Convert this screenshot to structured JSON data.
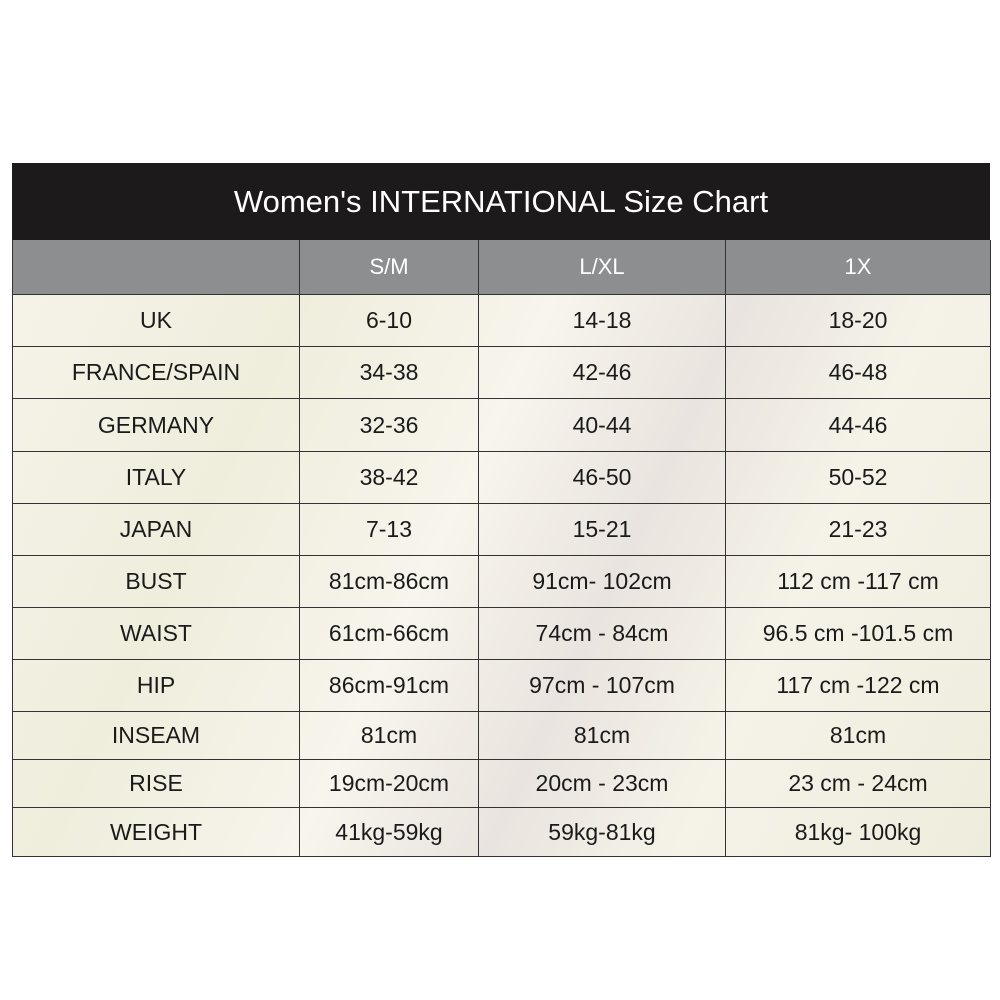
{
  "title": "Women's INTERNATIONAL Size Chart",
  "columns": [
    "",
    "S/M",
    "L/XL",
    "1X"
  ],
  "rows": [
    {
      "label": "UK",
      "values": [
        "6-10",
        "14-18",
        "18-20"
      ]
    },
    {
      "label": "FRANCE/SPAIN",
      "values": [
        "34-38",
        "42-46",
        "46-48"
      ]
    },
    {
      "label": "GERMANY",
      "values": [
        "32-36",
        "40-44",
        "44-46"
      ]
    },
    {
      "label": "ITALY",
      "values": [
        "38-42",
        "46-50",
        "50-52"
      ]
    },
    {
      "label": "JAPAN",
      "values": [
        "7-13",
        "15-21",
        "21-23"
      ]
    },
    {
      "label": "BUST",
      "values": [
        "81cm-86cm",
        "91cm- 102cm",
        "112 cm -117 cm"
      ]
    },
    {
      "label": "WAIST",
      "values": [
        "61cm-66cm",
        "74cm - 84cm",
        "96.5 cm -101.5 cm"
      ]
    },
    {
      "label": "HIP",
      "values": [
        "86cm-91cm",
        "97cm - 107cm",
        "117 cm -122 cm"
      ]
    },
    {
      "label": "INSEAM",
      "values": [
        "81cm",
        "81cm",
        "81cm"
      ]
    },
    {
      "label": "RISE",
      "values": [
        "19cm-20cm",
        "20cm - 23cm",
        "23 cm - 24cm"
      ]
    },
    {
      "label": "WEIGHT",
      "values": [
        "41kg-59kg",
        "59kg-81kg",
        "81kg- 100kg"
      ]
    }
  ],
  "colors": {
    "title_bg": "#1c1a1a",
    "header_bg": "#8d8e90",
    "text": "#1a1a1a"
  }
}
